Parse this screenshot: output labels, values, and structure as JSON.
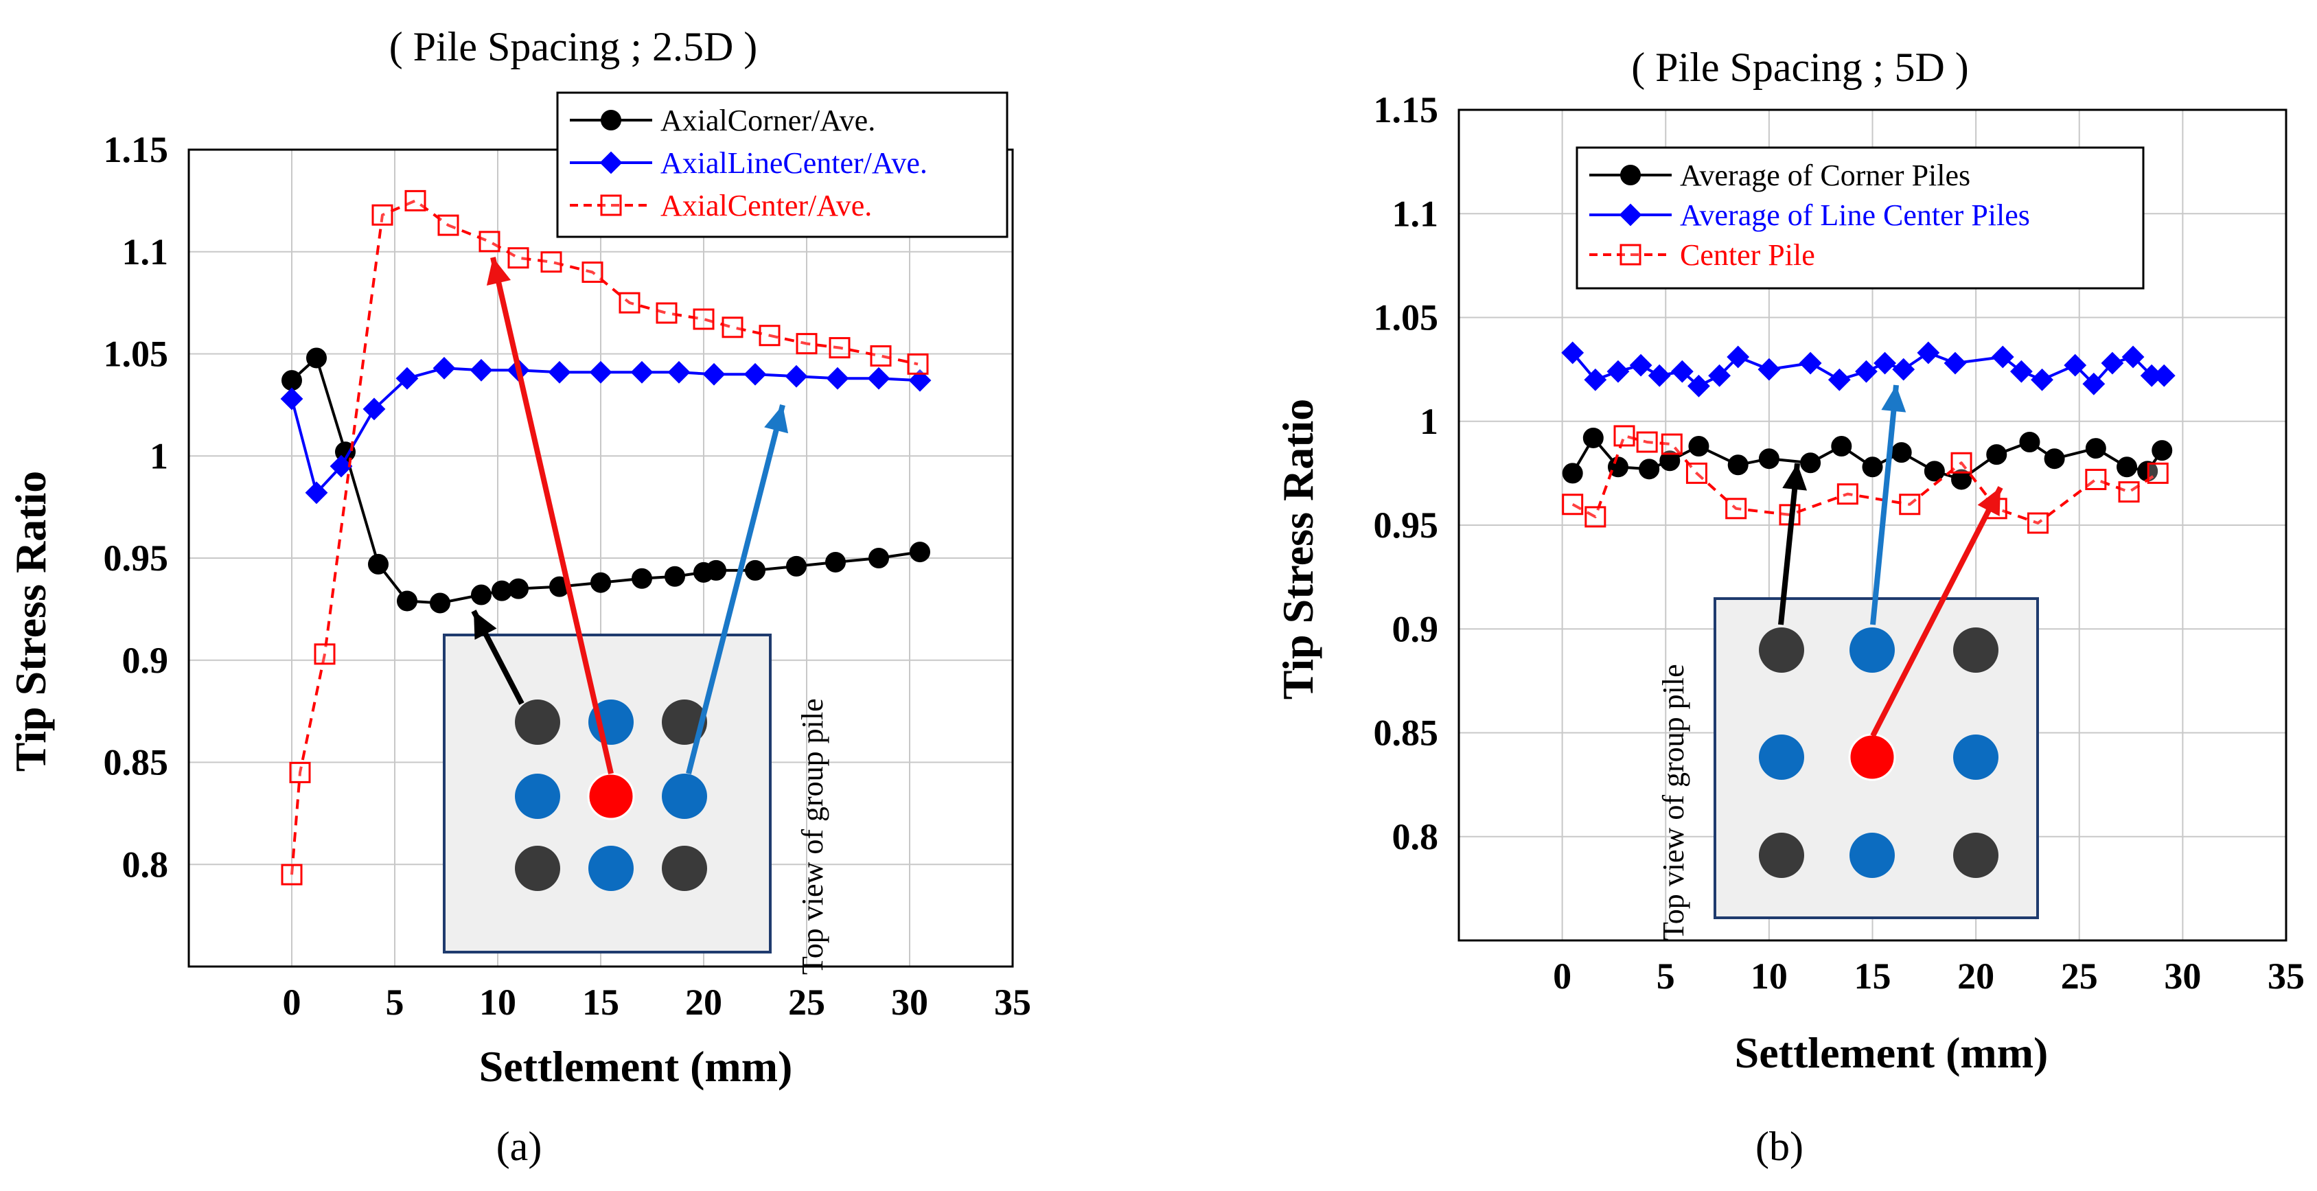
{
  "chart_data": [
    {
      "id": "a",
      "type": "line",
      "title": "( Pile Spacing ; 2.5D )",
      "xlabel": "Settlement  (mm)",
      "ylabel": "Tip Stress Ratio",
      "caption": "(a)",
      "inset_label": "Top view of group pile",
      "xlim": [
        -5,
        35
      ],
      "ylim": [
        0.75,
        1.15
      ],
      "xticks": [
        0,
        5,
        10,
        15,
        20,
        25,
        30,
        35
      ],
      "yticks": [
        0.8,
        0.85,
        0.9,
        0.95,
        1,
        1.05,
        1.1,
        1.15
      ],
      "ytick_labels": [
        "0.8",
        "0.85",
        "0.9",
        "0.95",
        "1",
        "1.05",
        "1.1",
        "1.15"
      ],
      "legend_position": "top-right",
      "series": [
        {
          "name": "AxialCorner/Ave.",
          "color": "#000000",
          "marker": "circle",
          "dash": "solid",
          "x": [
            0,
            1.2,
            2.6,
            4.2,
            5.6,
            7.2,
            9.2,
            10.2,
            11,
            13,
            15,
            17,
            18.6,
            20,
            20.6,
            22.5,
            24.5,
            26.4,
            28.5,
            30.5
          ],
          "y": [
            1.037,
            1.048,
            1.002,
            0.947,
            0.929,
            0.928,
            0.932,
            0.934,
            0.935,
            0.936,
            0.938,
            0.94,
            0.941,
            0.943,
            0.944,
            0.944,
            0.946,
            0.948,
            0.95,
            0.953
          ]
        },
        {
          "name": "AxialLineCenter/Ave.",
          "color": "#0000ff",
          "marker": "diamond",
          "dash": "solid",
          "x": [
            0,
            1.2,
            2.4,
            4,
            5.6,
            7.4,
            9.2,
            11,
            13,
            15,
            17,
            18.8,
            20.5,
            22.5,
            24.5,
            26.5,
            28.5,
            30.5
          ],
          "y": [
            1.028,
            0.982,
            0.995,
            1.023,
            1.038,
            1.043,
            1.042,
            1.042,
            1.041,
            1.041,
            1.041,
            1.041,
            1.04,
            1.04,
            1.039,
            1.038,
            1.038,
            1.037
          ]
        },
        {
          "name": "AxialCenter/Ave.",
          "color": "#ff0000",
          "marker": "square-open",
          "dash": "dashed",
          "x": [
            0,
            0.4,
            1.6,
            4.4,
            6,
            7.6,
            9.6,
            11,
            12.6,
            14.6,
            16.4,
            18.2,
            20,
            21.4,
            23.2,
            25,
            26.6,
            28.6,
            30.4
          ],
          "y": [
            0.795,
            0.845,
            0.903,
            1.118,
            1.125,
            1.113,
            1.105,
            1.097,
            1.095,
            1.09,
            1.075,
            1.07,
            1.067,
            1.063,
            1.059,
            1.055,
            1.053,
            1.049,
            1.045
          ]
        }
      ]
    },
    {
      "id": "b",
      "type": "line",
      "title": "( Pile Spacing ; 5D )",
      "xlabel": "Settlement  (mm)",
      "ylabel": "Tip Stress Ratio",
      "caption": "(b)",
      "inset_label": "Top view of group pile",
      "xlim": [
        -5,
        35
      ],
      "ylim": [
        0.75,
        1.15
      ],
      "xticks": [
        0,
        5,
        10,
        15,
        20,
        25,
        30,
        35
      ],
      "yticks": [
        0.8,
        0.85,
        0.9,
        0.95,
        1,
        1.05,
        1.1,
        1.15
      ],
      "ytick_labels": [
        "0.8",
        "0.85",
        "0.9",
        "0.95",
        "1",
        "1.05",
        "1.1",
        "1.15"
      ],
      "legend_position": "top-right",
      "series": [
        {
          "name": "Average of Corner Piles",
          "color": "#000000",
          "marker": "circle",
          "dash": "solid",
          "x": [
            0.5,
            1.5,
            2.7,
            4.2,
            5.2,
            6.6,
            8.5,
            10,
            12,
            13.5,
            15,
            16.4,
            18,
            19.3,
            21,
            22.6,
            23.8,
            25.8,
            27.3,
            28.3,
            29
          ],
          "y": [
            0.975,
            0.992,
            0.978,
            0.977,
            0.981,
            0.988,
            0.979,
            0.982,
            0.98,
            0.988,
            0.978,
            0.985,
            0.976,
            0.972,
            0.984,
            0.99,
            0.982,
            0.987,
            0.978,
            0.976,
            0.986
          ]
        },
        {
          "name": "Average of Line Center Piles",
          "color": "#0000ff",
          "marker": "diamond",
          "dash": "solid",
          "x": [
            0.5,
            1.6,
            2.7,
            3.8,
            4.7,
            5.8,
            6.6,
            7.6,
            8.5,
            10,
            12,
            13.4,
            14.7,
            15.6,
            16.5,
            17.7,
            19,
            21.3,
            22.2,
            23.2,
            24.8,
            25.7,
            26.6,
            27.6,
            28.5,
            29.1
          ],
          "y": [
            1.033,
            1.02,
            1.024,
            1.027,
            1.022,
            1.024,
            1.017,
            1.022,
            1.031,
            1.025,
            1.028,
            1.02,
            1.024,
            1.028,
            1.025,
            1.033,
            1.028,
            1.031,
            1.024,
            1.02,
            1.027,
            1.018,
            1.028,
            1.031,
            1.022,
            1.022
          ]
        },
        {
          "name": "Center Pile",
          "color": "#ff0000",
          "marker": "square-open",
          "dash": "dashed",
          "x": [
            0.5,
            1.6,
            3,
            4.1,
            5.3,
            6.5,
            8.4,
            11,
            13.8,
            16.8,
            19.3,
            21,
            23,
            25.8,
            27.4,
            28.8
          ],
          "y": [
            0.96,
            0.954,
            0.993,
            0.99,
            0.989,
            0.975,
            0.958,
            0.955,
            0.965,
            0.96,
            0.98,
            0.958,
            0.951,
            0.972,
            0.966,
            0.975
          ]
        }
      ]
    }
  ],
  "colors": {
    "corner_pile": "#3a3a3a",
    "line_center_pile": "#0c6cc0",
    "center_pile": "#ff0000",
    "inset_bg": "#efefef",
    "inset_border": "#1f3b6e",
    "arrow_black": "#000000",
    "arrow_red": "#ee1111",
    "arrow_blue": "#1a78c8"
  }
}
